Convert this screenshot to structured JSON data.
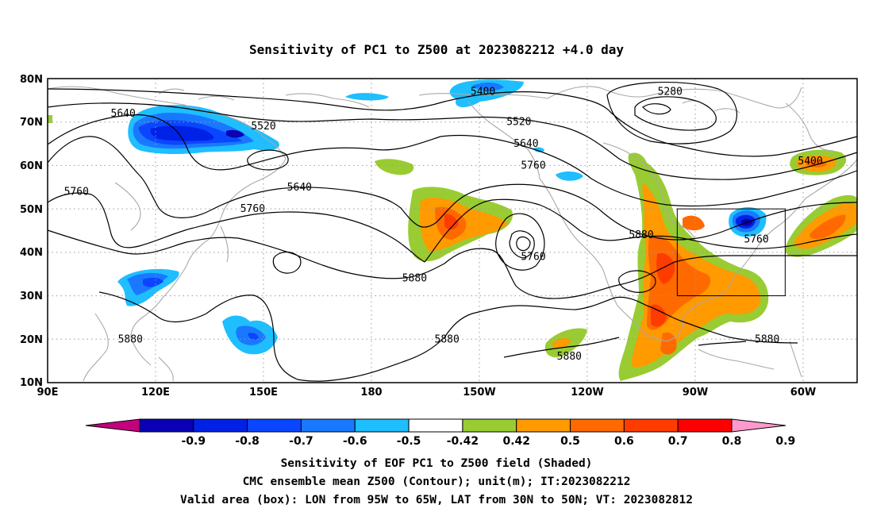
{
  "title": "Sensitivity of PC1 to Z500 at 2023082212 +4.0 day",
  "axes": {
    "lat_ticks": [
      "80N",
      "70N",
      "60N",
      "50N",
      "40N",
      "30N",
      "20N",
      "10N"
    ],
    "lon_ticks": [
      "90E",
      "120E",
      "150E",
      "180",
      "150W",
      "120W",
      "90W",
      "60W"
    ],
    "lon_range_deg_east": [
      90,
      315
    ],
    "lat_range_deg": [
      10,
      80
    ],
    "grid": "dotted, every 30 deg lon and 10 deg lat"
  },
  "contour_labels": [
    {
      "text": "5280",
      "lon": 263,
      "lat": 77
    },
    {
      "text": "5400",
      "lon": 211,
      "lat": 77
    },
    {
      "text": "5400",
      "lon": 302,
      "lat": 61
    },
    {
      "text": "5520",
      "lon": 150,
      "lat": 69
    },
    {
      "text": "5520",
      "lon": 221,
      "lat": 70
    },
    {
      "text": "5640",
      "lon": 111,
      "lat": 72
    },
    {
      "text": "5640",
      "lon": 223,
      "lat": 65
    },
    {
      "text": "5640",
      "lon": 160,
      "lat": 55
    },
    {
      "text": "5760",
      "lon": 98,
      "lat": 54
    },
    {
      "text": "5760",
      "lon": 225,
      "lat": 60
    },
    {
      "text": "5760",
      "lon": 147,
      "lat": 50
    },
    {
      "text": "5760",
      "lon": 225,
      "lat": 39
    },
    {
      "text": "5760",
      "lon": 287,
      "lat": 43
    },
    {
      "text": "5880",
      "lon": 255,
      "lat": 44
    },
    {
      "text": "5880",
      "lon": 192,
      "lat": 34
    },
    {
      "text": "5880",
      "lon": 113,
      "lat": 20
    },
    {
      "text": "5880",
      "lon": 201,
      "lat": 20
    },
    {
      "text": "5880",
      "lon": 235,
      "lat": 16
    },
    {
      "text": "5880",
      "lon": 290,
      "lat": 20
    }
  ],
  "valid_box": {
    "lon_w": 265,
    "lon_e": 295,
    "lat_s": 30,
    "lat_n": 50
  },
  "colorbar": {
    "colors": [
      "#c4007c",
      "#0a00b4",
      "#0022e6",
      "#0a46ff",
      "#1a78ff",
      "#1ebeff",
      "#ffffff",
      "#99cc33",
      "#ff9a00",
      "#ff6a00",
      "#ff3c00",
      "#ff0000",
      "#ff99cc"
    ],
    "labels": [
      "-0.9",
      "-0.8",
      "-0.7",
      "-0.6",
      "-0.5",
      "-0.42",
      "0.42",
      "0.5",
      "0.6",
      "0.7",
      "0.8",
      "0.9"
    ]
  },
  "captions": [
    "Sensitivity of EOF PC1 to Z500 field (Shaded)",
    "CMC ensemble mean Z500 (Contour); unit(m); IT:2023082212",
    "Valid area (box): LON from 95W to 65W, LAT from 30N to 50N; VT: 2023082812"
  ]
}
